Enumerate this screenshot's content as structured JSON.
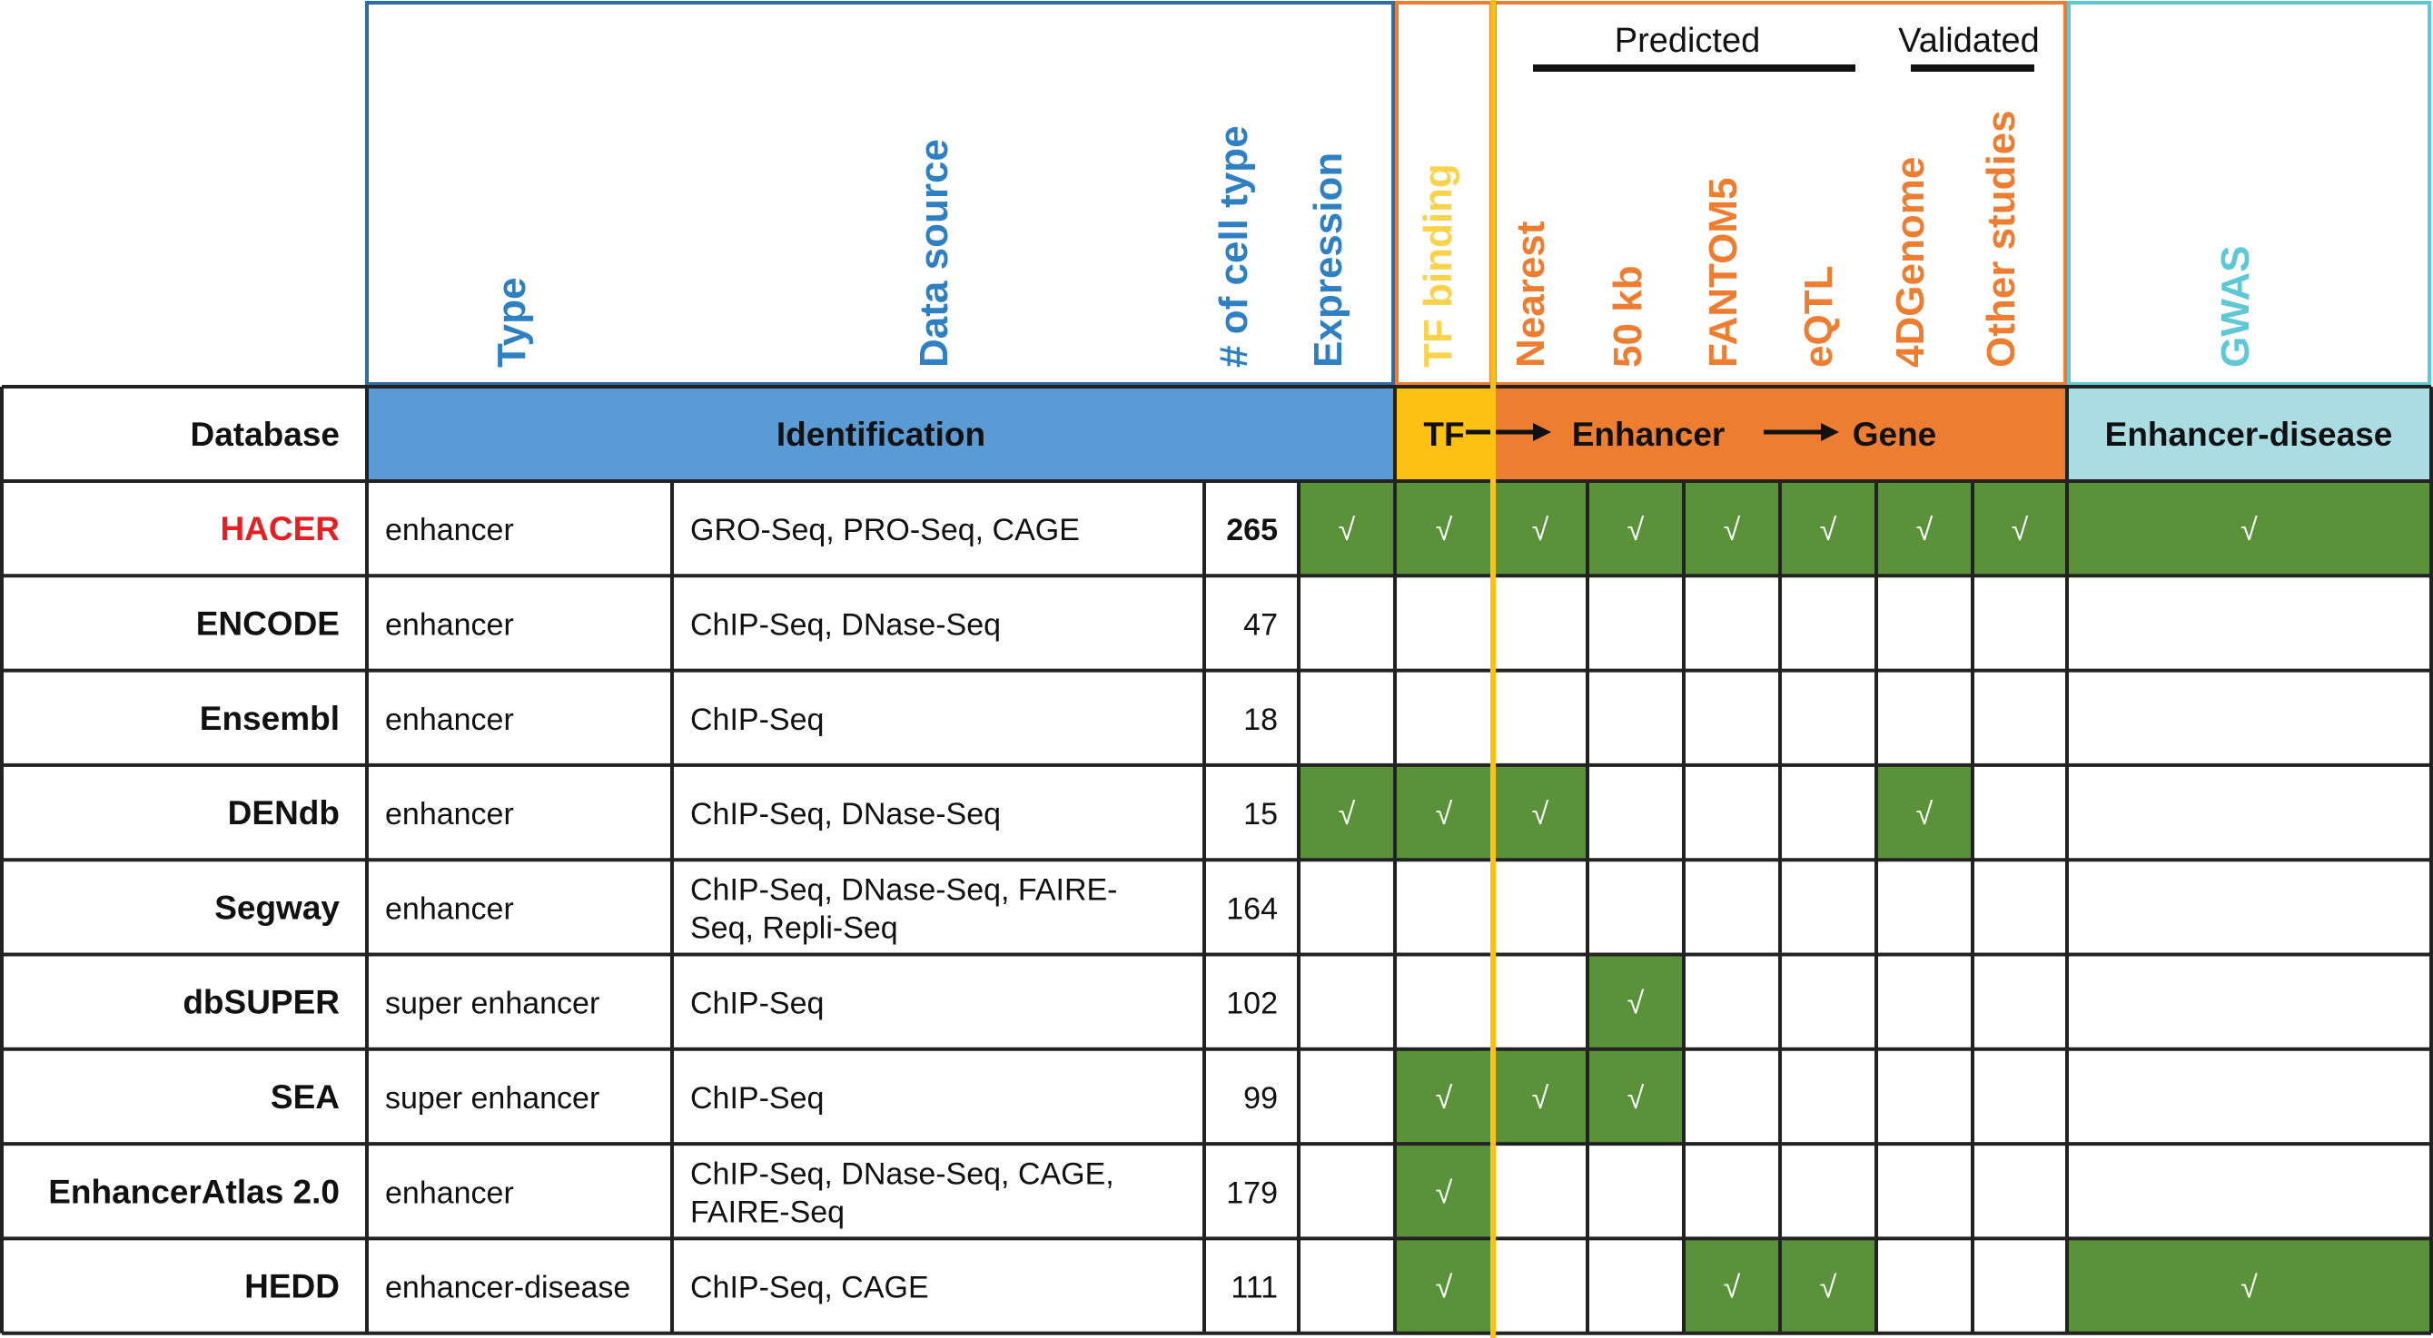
{
  "colors": {
    "blue_border": "#2e6da4",
    "blue_text": "#2f80c2",
    "blue_band": "#5b9bd5",
    "tf_yellow": "#fdc114",
    "tf_light_text": "#fbd34b",
    "orange": "#ed7d31",
    "cyan_border": "#5fc8d6",
    "cyan_band": "#a9dde3",
    "green": "#5a9239",
    "highlight_red": "#e32026",
    "grid": "#222222"
  },
  "vertical_headers": [
    {
      "key": "type",
      "label": "Type",
      "color": "#2f80c2"
    },
    {
      "key": "data_source",
      "label": "Data source",
      "color": "#2f80c2"
    },
    {
      "key": "cell_types",
      "label": "# of cell type",
      "color": "#2f80c2"
    },
    {
      "key": "expression",
      "label": "Expression",
      "color": "#2f80c2"
    },
    {
      "key": "tf_binding",
      "label": "TF binding",
      "color": "#fbd34b"
    },
    {
      "key": "nearest",
      "label": "Nearest",
      "color": "#ed7d31"
    },
    {
      "key": "kb50",
      "label": "50 kb",
      "color": "#ed7d31"
    },
    {
      "key": "fantom5",
      "label": "FANTOM5",
      "color": "#ed7d31"
    },
    {
      "key": "eqtl",
      "label": "eQTL",
      "color": "#ed7d31"
    },
    {
      "key": "4dgenome",
      "label": "4DGenome",
      "color": "#ed7d31"
    },
    {
      "key": "other",
      "label": "Other studies",
      "color": "#ed7d31"
    },
    {
      "key": "gwas",
      "label": "GWAS",
      "color": "#5fc8d6"
    }
  ],
  "group_headers": {
    "predicted": "Predicted",
    "validated": "Validated"
  },
  "band": {
    "database": "Database",
    "identification": "Identification",
    "tf": "TF",
    "enhancer": "Enhancer",
    "gene": "Gene",
    "enhancer_disease": "Enhancer-disease"
  },
  "check_mark": "√",
  "rows": [
    {
      "name": "HACER",
      "highlight": true,
      "type": "enhancer",
      "source": [
        "GRO-Seq, PRO-Seq, CAGE"
      ],
      "cells": "265",
      "checks": [
        1,
        1,
        1,
        1,
        1,
        1,
        1,
        1,
        1
      ]
    },
    {
      "name": "ENCODE",
      "highlight": false,
      "type": "enhancer",
      "source": [
        "ChIP-Seq, DNase-Seq"
      ],
      "cells": "47",
      "checks": [
        0,
        0,
        0,
        0,
        0,
        0,
        0,
        0,
        0
      ]
    },
    {
      "name": "Ensembl",
      "highlight": false,
      "type": "enhancer",
      "source": [
        "ChIP-Seq"
      ],
      "cells": "18",
      "checks": [
        0,
        0,
        0,
        0,
        0,
        0,
        0,
        0,
        0
      ]
    },
    {
      "name": "DENdb",
      "highlight": false,
      "type": "enhancer",
      "source": [
        "ChIP-Seq, DNase-Seq"
      ],
      "cells": "15",
      "checks": [
        1,
        1,
        1,
        0,
        0,
        0,
        1,
        0,
        0
      ]
    },
    {
      "name": "Segway",
      "highlight": false,
      "type": "enhancer",
      "source": [
        "ChIP-Seq, DNase-Seq, FAIRE-",
        "Seq, Repli-Seq"
      ],
      "cells": "164",
      "checks": [
        0,
        0,
        0,
        0,
        0,
        0,
        0,
        0,
        0
      ]
    },
    {
      "name": "dbSUPER",
      "highlight": false,
      "type": "super enhancer",
      "source": [
        "ChIP-Seq"
      ],
      "cells": "102",
      "checks": [
        0,
        0,
        0,
        1,
        0,
        0,
        0,
        0,
        0
      ]
    },
    {
      "name": "SEA",
      "highlight": false,
      "type": "super enhancer",
      "source": [
        "ChIP-Seq"
      ],
      "cells": "99",
      "checks": [
        0,
        1,
        1,
        1,
        0,
        0,
        0,
        0,
        0
      ]
    },
    {
      "name": "EnhancerAtlas 2.0",
      "highlight": false,
      "type": "enhancer",
      "source": [
        "ChIP-Seq, DNase-Seq, CAGE,",
        "FAIRE-Seq"
      ],
      "cells": "179",
      "checks": [
        0,
        1,
        0,
        0,
        0,
        0,
        0,
        0,
        0
      ]
    },
    {
      "name": "HEDD",
      "highlight": false,
      "type": "enhancer-disease",
      "source": [
        "ChIP-Seq, CAGE"
      ],
      "cells": "111",
      "checks": [
        0,
        1,
        0,
        0,
        1,
        1,
        0,
        0,
        1
      ]
    }
  ]
}
